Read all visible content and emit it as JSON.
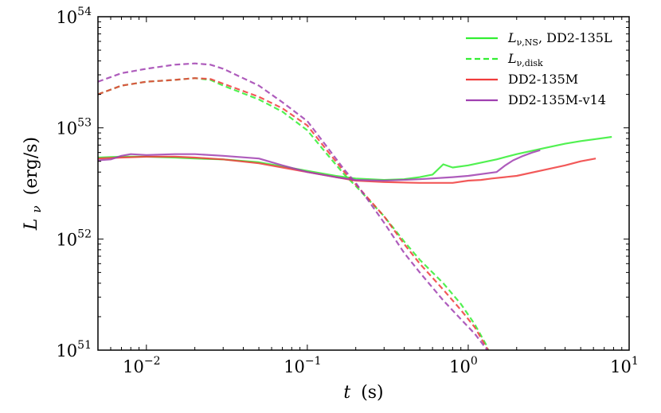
{
  "chart_data": {
    "type": "line",
    "xlabel": {
      "var": "t",
      "unit": "(s)"
    },
    "ylabel": {
      "var": "L",
      "sub": "ν",
      "unit": "(erg/s)"
    },
    "x_scale": "log",
    "y_scale": "log",
    "xlim": [
      0.005,
      10
    ],
    "ylim": [
      1e+51,
      1e+54
    ],
    "x_ticks": [
      {
        "value": 0.01,
        "base": "10",
        "exp": "−2"
      },
      {
        "value": 0.1,
        "base": "10",
        "exp": "−1"
      },
      {
        "value": 1,
        "base": "10",
        "exp": "0"
      },
      {
        "value": 10,
        "base": "10",
        "exp": "1"
      }
    ],
    "y_ticks": [
      {
        "value": 1e+51,
        "base": "10",
        "exp": "51"
      },
      {
        "value": 1e+52,
        "base": "10",
        "exp": "52"
      },
      {
        "value": 1e+53,
        "base": "10",
        "exp": "53"
      },
      {
        "value": 1e+54,
        "base": "10",
        "exp": "54"
      }
    ],
    "legend_position": "top-right",
    "legend": [
      {
        "text": "L",
        "sub": "ν,NS",
        "suffix": ", DD2-135L",
        "color": "#33ee33",
        "dashed": false
      },
      {
        "text": "L",
        "sub": "ν,disk",
        "suffix": "",
        "color": "#33ee33",
        "dashed": true
      },
      {
        "text": "DD2-135M",
        "sub": "",
        "suffix": "",
        "color": "#f03c3c",
        "dashed": false
      },
      {
        "text": "DD2-135M-v14",
        "sub": "",
        "suffix": "",
        "color": "#a040b0",
        "dashed": false
      }
    ],
    "series": [
      {
        "name": "DD2-135L NS",
        "color": "#33ee33",
        "dashed": false,
        "points": [
          [
            0.005,
            5.4e+52
          ],
          [
            0.007,
            5.5e+52
          ],
          [
            0.01,
            5.5e+52
          ],
          [
            0.015,
            5.4e+52
          ],
          [
            0.02,
            5.3e+52
          ],
          [
            0.03,
            5.2e+52
          ],
          [
            0.05,
            4.9e+52
          ],
          [
            0.07,
            4.5e+52
          ],
          [
            0.1,
            4.1e+52
          ],
          [
            0.15,
            3.7e+52
          ],
          [
            0.2,
            3.5e+52
          ],
          [
            0.3,
            3.4e+52
          ],
          [
            0.4,
            3.45e+52
          ],
          [
            0.5,
            3.6e+52
          ],
          [
            0.6,
            3.8e+52
          ],
          [
            0.7,
            4.7e+52
          ],
          [
            0.8,
            4.4e+52
          ],
          [
            1.0,
            4.6e+52
          ],
          [
            1.5,
            5.2e+52
          ],
          [
            2,
            5.8e+52
          ],
          [
            3,
            6.6e+52
          ],
          [
            4,
            7.2e+52
          ],
          [
            5,
            7.6e+52
          ],
          [
            7.8,
            8.3e+52
          ]
        ]
      },
      {
        "name": "DD2-135L disk",
        "color": "#33ee33",
        "dashed": true,
        "points": [
          [
            0.005,
            2e+53
          ],
          [
            0.007,
            2.4e+53
          ],
          [
            0.01,
            2.6e+53
          ],
          [
            0.015,
            2.7e+53
          ],
          [
            0.02,
            2.8e+53
          ],
          [
            0.025,
            2.7e+53
          ],
          [
            0.03,
            2.4e+53
          ],
          [
            0.05,
            1.8e+53
          ],
          [
            0.07,
            1.4e+53
          ],
          [
            0.1,
            9.5e+52
          ],
          [
            0.13,
            6e+52
          ],
          [
            0.17,
            3.8e+52
          ],
          [
            0.2,
            3e+52
          ],
          [
            0.3,
            1.6e+52
          ],
          [
            0.4,
            9.5e+51
          ],
          [
            0.5,
            6.5e+51
          ],
          [
            0.7,
            4e+51
          ],
          [
            0.9,
            2.6e+51
          ],
          [
            1.1,
            1.7e+51
          ],
          [
            1.3,
            1.1e+51
          ],
          [
            1.33,
            1e+51
          ]
        ]
      },
      {
        "name": "DD2-135M NS",
        "color": "#f03c3c",
        "dashed": false,
        "points": [
          [
            0.005,
            5.3e+52
          ],
          [
            0.007,
            5.4e+52
          ],
          [
            0.01,
            5.5e+52
          ],
          [
            0.015,
            5.5e+52
          ],
          [
            0.02,
            5.4e+52
          ],
          [
            0.03,
            5.2e+52
          ],
          [
            0.05,
            4.8e+52
          ],
          [
            0.07,
            4.4e+52
          ],
          [
            0.1,
            4e+52
          ],
          [
            0.15,
            3.6e+52
          ],
          [
            0.2,
            3.35e+52
          ],
          [
            0.3,
            3.25e+52
          ],
          [
            0.5,
            3.2e+52
          ],
          [
            0.8,
            3.2e+52
          ],
          [
            1.0,
            3.35e+52
          ],
          [
            1.2,
            3.4e+52
          ],
          [
            1.4,
            3.5e+52
          ],
          [
            2,
            3.7e+52
          ],
          [
            3,
            4.2e+52
          ],
          [
            4,
            4.6e+52
          ],
          [
            5,
            5e+52
          ],
          [
            6.2,
            5.3e+52
          ]
        ]
      },
      {
        "name": "DD2-135M disk",
        "color": "#f03c3c",
        "dashed": true,
        "points": [
          [
            0.005,
            2e+53
          ],
          [
            0.007,
            2.4e+53
          ],
          [
            0.01,
            2.6e+53
          ],
          [
            0.015,
            2.7e+53
          ],
          [
            0.02,
            2.8e+53
          ],
          [
            0.025,
            2.75e+53
          ],
          [
            0.03,
            2.5e+53
          ],
          [
            0.05,
            1.9e+53
          ],
          [
            0.07,
            1.5e+53
          ],
          [
            0.1,
            1.05e+53
          ],
          [
            0.13,
            6.5e+52
          ],
          [
            0.17,
            4e+52
          ],
          [
            0.2,
            3.1e+52
          ],
          [
            0.3,
            1.6e+52
          ],
          [
            0.4,
            9e+51
          ],
          [
            0.5,
            6e+51
          ],
          [
            0.7,
            3.5e+51
          ],
          [
            0.9,
            2.3e+51
          ],
          [
            1.1,
            1.6e+51
          ],
          [
            1.3,
            1.05e+51
          ],
          [
            1.33,
            1e+51
          ]
        ]
      },
      {
        "name": "DD2-135M-v14 NS",
        "color": "#a040b0",
        "dashed": false,
        "points": [
          [
            0.005,
            5.1e+52
          ],
          [
            0.006,
            5.2e+52
          ],
          [
            0.007,
            5.6e+52
          ],
          [
            0.008,
            5.8e+52
          ],
          [
            0.01,
            5.7e+52
          ],
          [
            0.015,
            5.8e+52
          ],
          [
            0.02,
            5.8e+52
          ],
          [
            0.03,
            5.6e+52
          ],
          [
            0.05,
            5.3e+52
          ],
          [
            0.07,
            4.6e+52
          ],
          [
            0.1,
            4e+52
          ],
          [
            0.15,
            3.6e+52
          ],
          [
            0.2,
            3.4e+52
          ],
          [
            0.3,
            3.35e+52
          ],
          [
            0.5,
            3.45e+52
          ],
          [
            0.8,
            3.6e+52
          ],
          [
            1.0,
            3.7e+52
          ],
          [
            1.5,
            4e+52
          ],
          [
            1.7,
            4.6e+52
          ],
          [
            1.9,
            5.1e+52
          ],
          [
            2.2,
            5.6e+52
          ],
          [
            2.5,
            6e+52
          ],
          [
            2.8,
            6.3e+52
          ]
        ]
      },
      {
        "name": "DD2-135M-v14 disk",
        "color": "#a040b0",
        "dashed": true,
        "points": [
          [
            0.005,
            2.6e+53
          ],
          [
            0.007,
            3.1e+53
          ],
          [
            0.01,
            3.4e+53
          ],
          [
            0.015,
            3.7e+53
          ],
          [
            0.02,
            3.8e+53
          ],
          [
            0.025,
            3.7e+53
          ],
          [
            0.03,
            3.4e+53
          ],
          [
            0.05,
            2.4e+53
          ],
          [
            0.07,
            1.7e+53
          ],
          [
            0.1,
            1.15e+53
          ],
          [
            0.13,
            7e+52
          ],
          [
            0.17,
            4.2e+52
          ],
          [
            0.2,
            3.2e+52
          ],
          [
            0.3,
            1.4e+52
          ],
          [
            0.4,
            7.5e+51
          ],
          [
            0.5,
            5e+51
          ],
          [
            0.7,
            2.8e+51
          ],
          [
            0.9,
            1.9e+51
          ],
          [
            1.1,
            1.4e+51
          ],
          [
            1.3,
            1.02e+51
          ],
          [
            1.32,
            1e+51
          ]
        ]
      }
    ]
  }
}
